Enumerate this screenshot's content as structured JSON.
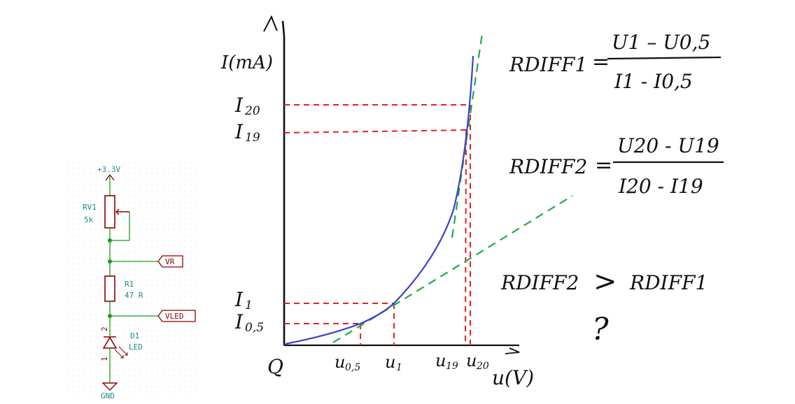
{
  "schematic": {
    "supply_label": "+3.3V",
    "rv1_ref": "RV1",
    "rv1_value": "5k",
    "r1_ref": "R1",
    "r1_value": "47 R",
    "vr_label": "VR",
    "vled_label": "VLED",
    "d1_ref": "D1",
    "d1_value": "LED",
    "pin2": "2",
    "pin1": "1",
    "gnd_label": "GND",
    "colors": {
      "wire": "#1e9a1e",
      "component": "#8b0000",
      "text": "#1a8a8a",
      "grid": "#d9d9d9"
    }
  },
  "graph": {
    "y_axis_label": "I(mA)",
    "x_axis_label": "u(V)",
    "origin_label": "Q",
    "y_ticks": [
      {
        "main": "I",
        "sub": "20"
      },
      {
        "main": "I",
        "sub": "19"
      },
      {
        "main": "I",
        "sub": "1"
      },
      {
        "main": "I",
        "sub": "0,5"
      }
    ],
    "x_ticks": [
      {
        "main": "u",
        "sub": "0,5"
      },
      {
        "main": "u",
        "sub": "1"
      },
      {
        "main": "u",
        "sub": "19"
      },
      {
        "main": "u",
        "sub": "20"
      }
    ],
    "colors": {
      "curve": "#4040cc",
      "tangent": "#1faa4a",
      "projection": "#e52020",
      "axis": "#111111"
    }
  },
  "equations": {
    "rdiff1": {
      "lhs": "RDIFF1",
      "eq": "=",
      "num": "U1 – U0,5",
      "den": "I1 - I0,5"
    },
    "rdiff2": {
      "lhs": "RDIFF2",
      "eq": "=",
      "num": "U20 - U19",
      "den": "I20 - I19"
    },
    "compare": {
      "left": "RDIFF2",
      "op": ">",
      "right": "RDIFF1"
    },
    "question": "?"
  }
}
